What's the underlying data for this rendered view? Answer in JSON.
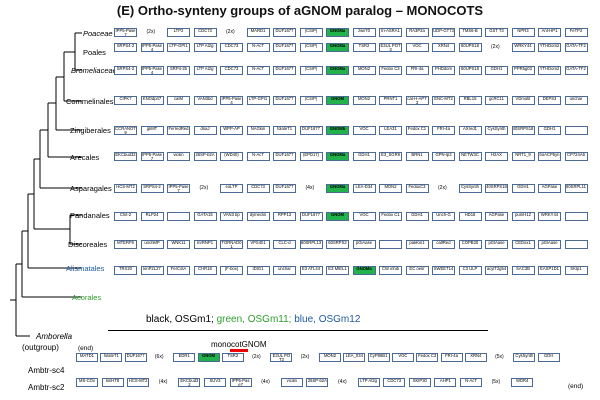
{
  "title": "(E) Ortho-synteny groups of aGNOM paralog – MONOCOTS",
  "taxa": [
    {
      "label": "Poaceae",
      "style": "it"
    },
    {
      "label": "Poales",
      "style": ""
    },
    {
      "label": "Bromeliaceae",
      "style": "it"
    },
    {
      "label": "Commelinales",
      "style": ""
    },
    {
      "label": "Zingiberales",
      "style": ""
    },
    {
      "label": "Arecales",
      "style": ""
    },
    {
      "label": "Asparagales",
      "style": ""
    },
    {
      "label": "Pandanales",
      "style": ""
    },
    {
      "label": "Discoreales",
      "style": ""
    },
    {
      "label": "Alismatales",
      "style": "blue"
    },
    {
      "label": "Acorales",
      "style": "green"
    }
  ],
  "rows": [
    {
      "items": [
        {
          "t": "IPP5-Pase7",
          "c": "#ffffff"
        },
        {
          "t": "(2x)",
          "c": "lab"
        },
        {
          "t": "LTP2",
          "c": "#ffffff"
        },
        {
          "t": "CDC73",
          "c": "#ffffff"
        },
        {
          "t": "(2x)",
          "c": "lab"
        },
        {
          "t": "MARD1",
          "c": "#ffffff"
        },
        {
          "t": "DUF1677",
          "c": "#ffffff"
        },
        {
          "t": "(CSIP)",
          "c": "#ffffff"
        },
        {
          "t": "GNOMa",
          "c": "#22b24c",
          "b": true
        },
        {
          "t": "zwi/70",
          "c": "#ffffff"
        },
        {
          "t": "tri-ASRA1",
          "c": "#ffffff"
        },
        {
          "t": "RA3P2a",
          "c": "#ffffff"
        },
        {
          "t": "UDP-GT73",
          "c": "#ffffff"
        },
        {
          "t": "TMS6-B",
          "c": "#ffffff"
        },
        {
          "t": "GST T3",
          "c": "#ffffff"
        },
        {
          "t": "NPR3",
          "c": "#ffffff"
        },
        {
          "t": "Ant-HP1",
          "c": "#ffffff"
        },
        {
          "t": "FeTP2",
          "c": "#ffffff"
        }
      ]
    },
    {
      "items": [
        {
          "t": "SRPS4-2",
          "c": "#ffffff"
        },
        {
          "t": "IPP5-Pase4",
          "c": "#ffffff"
        },
        {
          "t": "LTP-GPI1",
          "c": "#ffffff"
        },
        {
          "t": "LTP At2g",
          "c": "#ffffff"
        },
        {
          "t": "CDC73",
          "c": "#ffffff"
        },
        {
          "t": "N-AcT",
          "c": "#ffffff"
        },
        {
          "t": "DUF1677",
          "c": "#ffffff"
        },
        {
          "t": "(CSIP)",
          "c": "#ffffff"
        },
        {
          "t": "GNOMa",
          "c": "#22b24c",
          "b": true
        },
        {
          "t": "TSR2",
          "c": "#ffffff"
        },
        {
          "t": "E3UL POT3",
          "c": "#ffffff"
        },
        {
          "t": "VOC",
          "c": "#ffffff"
        },
        {
          "t": "XRN4",
          "c": "#ffffff"
        },
        {
          "t": "60UPS18",
          "c": "#ffffff"
        },
        {
          "t": "(2x)",
          "c": "lab"
        },
        {
          "t": "WRKY44",
          "c": "#ffffff"
        },
        {
          "t": "YTHDom2",
          "c": "#ffffff"
        },
        {
          "t": "GATA-TF2",
          "c": "#ffffff"
        }
      ]
    },
    {
      "items": [
        {
          "t": "SRPS4-2",
          "c": "#ffffff"
        },
        {
          "t": "IPP5-Pase4",
          "c": "#ffffff"
        },
        {
          "t": "SRP4-2b",
          "c": "#ffffff"
        },
        {
          "t": "LTP At2g",
          "c": "#ffffff"
        },
        {
          "t": "CDC73",
          "c": "#ffffff"
        },
        {
          "t": "N-AcT",
          "c": "#ffffff"
        },
        {
          "t": "DUF1677",
          "c": "#ffffff"
        },
        {
          "t": "(CSIP)",
          "c": "#ffffff"
        },
        {
          "t": "GNOMa",
          "c": "#22b24c",
          "b": true
        },
        {
          "t": "MON2",
          "c": "#ffffff"
        },
        {
          "t": "Fedox C3",
          "c": "#ffffff"
        },
        {
          "t": "FRI-4a",
          "c": "#ffffff"
        },
        {
          "t": "PHDdom",
          "c": "#ffffff"
        },
        {
          "t": "60UPS18",
          "c": "#ffffff"
        },
        {
          "t": "GDH1",
          "c": "#ffffff"
        },
        {
          "t": "PPR5g03",
          "c": "#ffffff"
        },
        {
          "t": "YTHDom2",
          "c": "#ffffff"
        },
        {
          "t": "GATA-TF2",
          "c": "#ffffff"
        }
      ]
    },
    {
      "items": [
        {
          "t": "CIPK7",
          "c": "#ffffff"
        },
        {
          "t": "KNOdp47",
          "c": "#ffffff"
        },
        {
          "t": "caIM",
          "c": "#ffffff"
        },
        {
          "t": "VAN3bd",
          "c": "#ffffff"
        },
        {
          "t": "IPP5-Pase4",
          "c": "#ffffff"
        },
        {
          "t": "LTP-GPI1",
          "c": "#ffffff"
        },
        {
          "t": "DUF1677",
          "c": "#ffffff"
        },
        {
          "t": "(CSIP)",
          "c": "#ffffff"
        },
        {
          "t": "GNOM",
          "c": "#22b24c",
          "b": true
        },
        {
          "t": "MON2",
          "c": "#ffffff"
        },
        {
          "t": "PRNT1",
          "c": "#ffffff"
        },
        {
          "t": "cat-H-APT3",
          "c": "#ffffff"
        },
        {
          "t": "ENC-MT2",
          "c": "#ffffff"
        },
        {
          "t": "RBL15",
          "c": "#ffffff"
        },
        {
          "t": "gcRC11",
          "c": "#ffffff"
        },
        {
          "t": "VDmotif",
          "c": "#ffffff"
        },
        {
          "t": "DEPS3",
          "c": "#ffffff"
        },
        {
          "t": "unchar",
          "c": "#ffffff"
        }
      ]
    },
    {
      "items": [
        {
          "t": "CCRANOT9",
          "c": "#ffffff"
        },
        {
          "t": "gkMT",
          "c": "#ffffff"
        },
        {
          "t": "FerredRed",
          "c": "#ffffff"
        },
        {
          "t": "dnaJ",
          "c": "#ffffff"
        },
        {
          "t": "WPP-AP",
          "c": "#ffffff"
        },
        {
          "t": "NAGkin",
          "c": "#ffffff"
        },
        {
          "t": "folateT1",
          "c": "#ffffff"
        },
        {
          "t": "DUF1677",
          "c": "#ffffff"
        },
        {
          "t": "GNOMb",
          "c": "#22b24c",
          "b": true
        },
        {
          "t": "VOC",
          "c": "#ffffff"
        },
        {
          "t": "LEA31",
          "c": "#ffffff"
        },
        {
          "t": "Fedox C1",
          "c": "#ffffff"
        },
        {
          "t": "FRI-4a",
          "c": "#ffffff"
        },
        {
          "t": "AXred1",
          "c": "#ffffff"
        },
        {
          "t": "CysSynth",
          "c": "#ffffff"
        },
        {
          "t": "40SRPS18",
          "c": "#ffffff"
        },
        {
          "t": "GDH1",
          "c": "#ffffff"
        },
        {
          "t": "",
          "c": "#ffffff"
        }
      ]
    },
    {
      "items": [
        {
          "t": "EKCbud32",
          "c": "#ffffff"
        },
        {
          "t": "IPP5-Pase7",
          "c": "#ffffff"
        },
        {
          "t": "vicilin",
          "c": "#ffffff"
        },
        {
          "t": "26SP-b2A",
          "c": "#ffffff"
        },
        {
          "t": "(WD40)",
          "c": "#ffffff"
        },
        {
          "t": "N-AcT",
          "c": "#ffffff"
        },
        {
          "t": "DUF1677",
          "c": "#ffffff"
        },
        {
          "t": "(EPD17)",
          "c": "#ffffff"
        },
        {
          "t": "GNOMa",
          "c": "#22b24c",
          "b": true
        },
        {
          "t": "GDH1",
          "c": "#ffffff"
        },
        {
          "t": "E3_SGR9",
          "c": "#ffffff"
        },
        {
          "t": "BRN1",
          "c": "#ffffff"
        },
        {
          "t": "GPN-lp3",
          "c": "#ffffff"
        },
        {
          "t": "NETW3C",
          "c": "#ffffff"
        },
        {
          "t": "H2AX",
          "c": "#ffffff"
        },
        {
          "t": "NRT1_9",
          "c": "#ffffff"
        },
        {
          "t": "boACPbyn",
          "c": "#ffffff"
        },
        {
          "t": "CP724A6",
          "c": "#ffffff"
        }
      ]
    },
    {
      "items": [
        {
          "t": "HCS-MT2",
          "c": "#ffffff"
        },
        {
          "t": "SRPS4-2",
          "c": "#ffffff"
        },
        {
          "t": "IPP5-Pase7",
          "c": "#ffffff"
        },
        {
          "t": "(2x)",
          "c": "lab"
        },
        {
          "t": "eoLTP",
          "c": "#ffffff"
        },
        {
          "t": "CDC73",
          "c": "#ffffff"
        },
        {
          "t": "DUF1677",
          "c": "#ffffff"
        },
        {
          "t": "(4x)",
          "c": "lab"
        },
        {
          "t": "GNOMa",
          "c": "#22b24c",
          "b": true
        },
        {
          "t": "LEA-D34",
          "c": "#ffffff"
        },
        {
          "t": "MON2",
          "c": "#ffffff"
        },
        {
          "t": "FedoxC3",
          "c": "#ffffff"
        },
        {
          "t": "(2x)",
          "c": "lab"
        },
        {
          "t": "CysSynth",
          "c": "#ffffff"
        },
        {
          "t": "40SRPS18",
          "c": "#ffffff"
        },
        {
          "t": "GDH1",
          "c": "#ffffff"
        },
        {
          "t": "AGPase",
          "c": "#ffffff"
        },
        {
          "t": "60SRPL11",
          "c": "#ffffff"
        }
      ]
    },
    {
      "items": [
        {
          "t": "Chit-2",
          "c": "#ffffff"
        },
        {
          "t": "RLP24",
          "c": "#ffffff"
        },
        {
          "t": "",
          "c": "#ffffff"
        },
        {
          "t": "GATA15",
          "c": "#ffffff"
        },
        {
          "t": "VAN3 bp",
          "c": "#ffffff"
        },
        {
          "t": "dymeclin",
          "c": "#ffffff"
        },
        {
          "t": "RPP13",
          "c": "#ffffff"
        },
        {
          "t": "DUF1677",
          "c": "#ffffff"
        },
        {
          "t": "GNOM",
          "c": "#22b24c",
          "b": true
        },
        {
          "t": "VOC",
          "c": "#ffffff"
        },
        {
          "t": "Fedox C1",
          "c": "#ffffff"
        },
        {
          "t": "GDH1",
          "c": "#ffffff"
        },
        {
          "t": "Unch-G",
          "c": "#ffffff"
        },
        {
          "t": "HD16",
          "c": "#ffffff"
        },
        {
          "t": "AGPase",
          "c": "#ffffff"
        },
        {
          "t": "pumH12",
          "c": "#ffffff"
        },
        {
          "t": "WRKY44",
          "c": "#ffffff"
        },
        {
          "t": "",
          "c": "#ffffff"
        }
      ]
    },
    {
      "items": [
        {
          "t": "MTERF9",
          "c": "#ffffff"
        },
        {
          "t": "unchMP",
          "c": "#ffffff"
        },
        {
          "t": "WNK11",
          "c": "#ffffff"
        },
        {
          "t": "InrRNP1",
          "c": "#ffffff"
        },
        {
          "t": "TORNAD01",
          "c": "#ffffff"
        },
        {
          "t": "VPS4h1",
          "c": "#ffffff"
        },
        {
          "t": "CLC-d",
          "c": "#ffffff"
        },
        {
          "t": "60SRPL13",
          "c": "#ffffff"
        },
        {
          "t": "60SRPS2",
          "c": "#ffffff"
        },
        {
          "t": "pGlAase",
          "c": "#ffffff"
        },
        {
          "t": "",
          "c": "#ffffff"
        },
        {
          "t": "pakKin1",
          "c": "#ffffff"
        },
        {
          "t": "calfRed",
          "c": "#ffffff"
        },
        {
          "t": "COPB20",
          "c": "#ffffff"
        },
        {
          "t": "pGlAase",
          "c": "#ffffff"
        },
        {
          "t": "CEDox1",
          "c": "#ffffff"
        },
        {
          "t": "pGlAase",
          "c": "#ffffff"
        },
        {
          "t": "",
          "c": "#ffffff"
        }
      ]
    },
    {
      "items": [
        {
          "t": "TRX20",
          "c": "#ffffff"
        },
        {
          "t": "kinP2L27",
          "c": "#ffffff"
        },
        {
          "t": "FerCotA",
          "c": "#ffffff"
        },
        {
          "t": "CHR18",
          "c": "#ffffff"
        },
        {
          "t": "(F-box)",
          "c": "#ffffff"
        },
        {
          "t": "IDIG1",
          "c": "#ffffff"
        },
        {
          "t": "unchar",
          "c": "#ffffff"
        },
        {
          "t": "E3 ATL44",
          "c": "#ffffff"
        },
        {
          "t": "E3 MIEL1",
          "c": "#ffffff"
        },
        {
          "t": "GNOMa",
          "c": "#22b24c",
          "b": true
        },
        {
          "t": "CW inhib",
          "c": "#ffffff"
        },
        {
          "t": "EC oesr",
          "c": "#ffffff"
        },
        {
          "t": "SWEET14",
          "c": "#ffffff"
        },
        {
          "t": "C3 ULP",
          "c": "#ffffff"
        },
        {
          "t": "acylT2g54",
          "c": "#ffffff"
        },
        {
          "t": "SAC3B",
          "c": "#ffffff"
        },
        {
          "t": "EASP1D1",
          "c": "#ffffff"
        },
        {
          "t": "SKIp1",
          "c": "#ffffff"
        }
      ]
    }
  ],
  "legend": {
    "black": "black, OSGm1;",
    "green": "green, OSGm11;",
    "blue": "blue, OSGm12"
  },
  "amborella": {
    "name": "Amborella",
    "outgroup": "(outgroup)",
    "monocot_gnom": "monocotGNOM",
    "sc4_label": "Ambtr-sc4",
    "sc2_label": "Ambtr-sc2",
    "end_left": "(end)",
    "end_right": "(end)"
  },
  "sc4": [
    {
      "t": "MATD1",
      "c": "#ffffff"
    },
    {
      "t": "folateT1",
      "c": "#ffffff"
    },
    {
      "t": "DUF1677",
      "c": "#ffffff"
    },
    {
      "t": "(6x)",
      "c": "lab"
    },
    {
      "t": "EDR1",
      "c": "#ffffff"
    },
    {
      "t": "GNOM",
      "c": "#22b24c",
      "b": true
    },
    {
      "t": "TSR2",
      "c": "#ffffff"
    },
    {
      "t": "(2x)",
      "c": "lab"
    },
    {
      "t": "E3UL POT3",
      "c": "#ffffff"
    },
    {
      "t": "(2x)",
      "c": "lab"
    },
    {
      "t": "MON2",
      "c": "#ffffff"
    },
    {
      "t": "LEA_034",
      "c": "#ffffff"
    },
    {
      "t": "CyP86B1",
      "c": "#ffffff"
    },
    {
      "t": "VOC",
      "c": "#ffffff"
    },
    {
      "t": "Fedox C3",
      "c": "#ffffff"
    },
    {
      "t": "FRI-4a",
      "c": "#ffffff"
    },
    {
      "t": "XRN4",
      "c": "#ffffff"
    },
    {
      "t": "(5x)",
      "c": "lab"
    },
    {
      "t": "CysSynth",
      "c": "#ffffff"
    },
    {
      "t": "GDH",
      "c": "#ffffff"
    }
  ],
  "sc2": [
    {
      "t": "MS-COx",
      "c": "#ffffff"
    },
    {
      "t": "kinHT8",
      "c": "#ffffff"
    },
    {
      "t": "HCS-MT2",
      "c": "#ffffff"
    },
    {
      "t": "(4x)",
      "c": "lab"
    },
    {
      "t": "EKCbud32",
      "c": "#ffffff"
    },
    {
      "t": "SUV3",
      "c": "#ffffff"
    },
    {
      "t": "IPP5-Pase7",
      "c": "#ffffff"
    },
    {
      "t": "(4x)",
      "c": "lab"
    },
    {
      "t": "vicilin",
      "c": "#ffffff"
    },
    {
      "t": "26SP-b2A",
      "c": "#ffffff"
    },
    {
      "t": "(4x)",
      "c": "lab"
    },
    {
      "t": "LTP At2g",
      "c": "#ffffff"
    },
    {
      "t": "CDC73",
      "c": "#ffffff"
    },
    {
      "t": "SKIP30",
      "c": "#ffffff"
    },
    {
      "t": "AHP1",
      "c": "#ffffff"
    },
    {
      "t": "N-AcT",
      "c": "#ffffff"
    },
    {
      "t": "(5x)",
      "c": "lab"
    },
    {
      "t": "WDR4",
      "c": "#ffffff"
    }
  ],
  "colors": {
    "gnom": "#22b24c",
    "box_border": "#4b6a96",
    "accent_red": "#e00000",
    "blue_text": "#1f5aa0",
    "green_text": "#2e9e2e"
  }
}
